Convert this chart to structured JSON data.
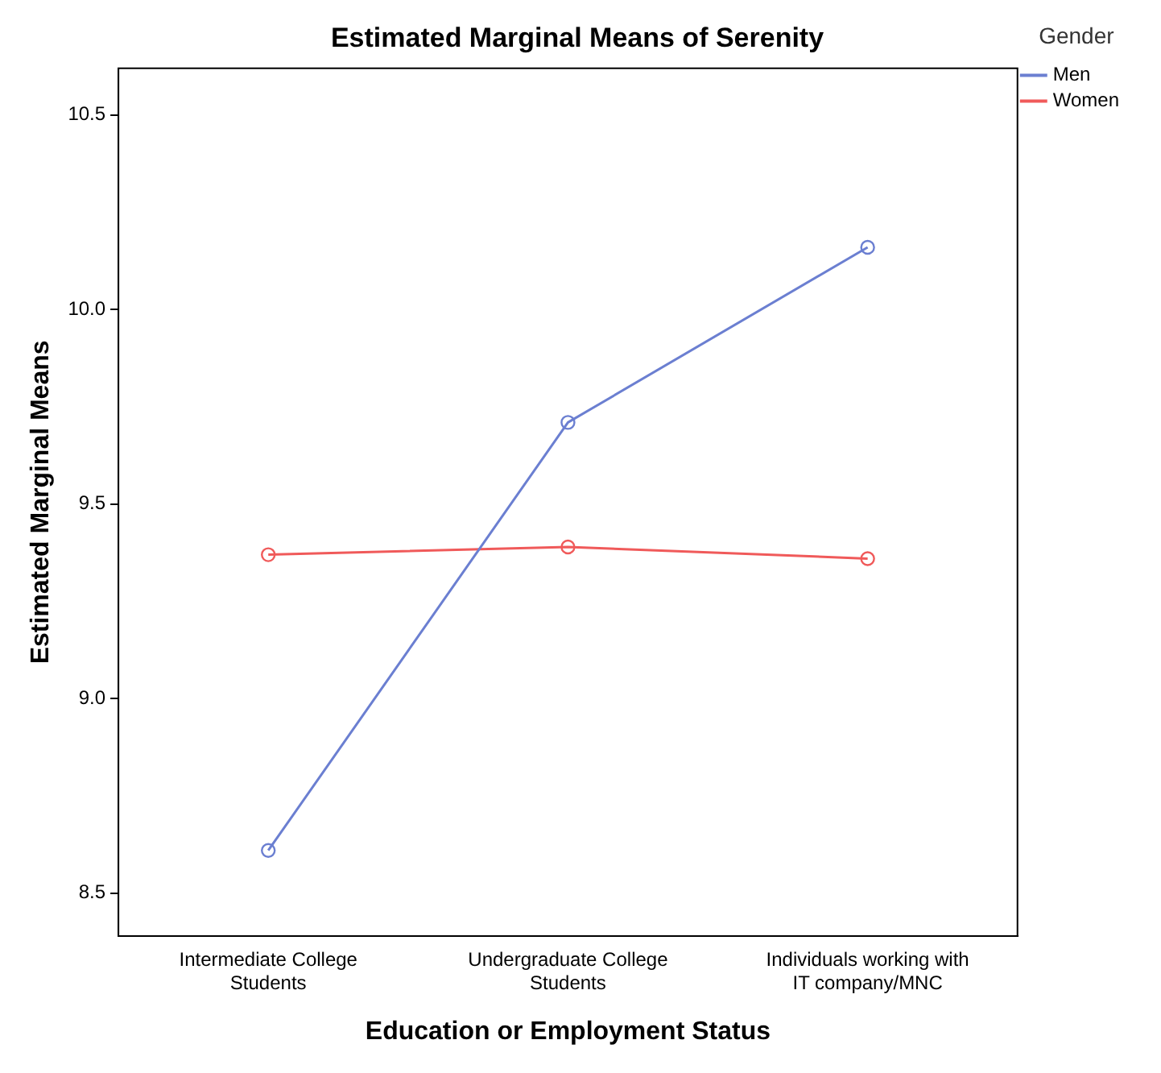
{
  "chart_data": {
    "type": "line",
    "title": "Estimated Marginal Means of Serenity",
    "xlabel": "Education or Employment Status",
    "ylabel": "Estimated Marginal Means",
    "legend_title": "Gender",
    "categories": [
      "Intermediate College Students",
      "Undergraduate College Students",
      "Individuals working with IT company/MNC"
    ],
    "series": [
      {
        "name": "Men",
        "color": "#6b7fd1",
        "values": [
          8.61,
          9.71,
          10.16
        ]
      },
      {
        "name": "Women",
        "color": "#f05a5a",
        "values": [
          9.37,
          9.39,
          9.36
        ]
      }
    ],
    "ylim": [
      8.39,
      10.62
    ],
    "yticks": [
      {
        "value": 8.5,
        "label": "8.5"
      },
      {
        "value": 9,
        "label": "9.0"
      },
      {
        "value": 9.5,
        "label": "9.5"
      },
      {
        "value": 10,
        "label": "10.0"
      },
      {
        "value": 10.5,
        "label": "10.5"
      }
    ],
    "grid": false,
    "legend": "top right",
    "marker": "circle",
    "line_style": "solid"
  }
}
